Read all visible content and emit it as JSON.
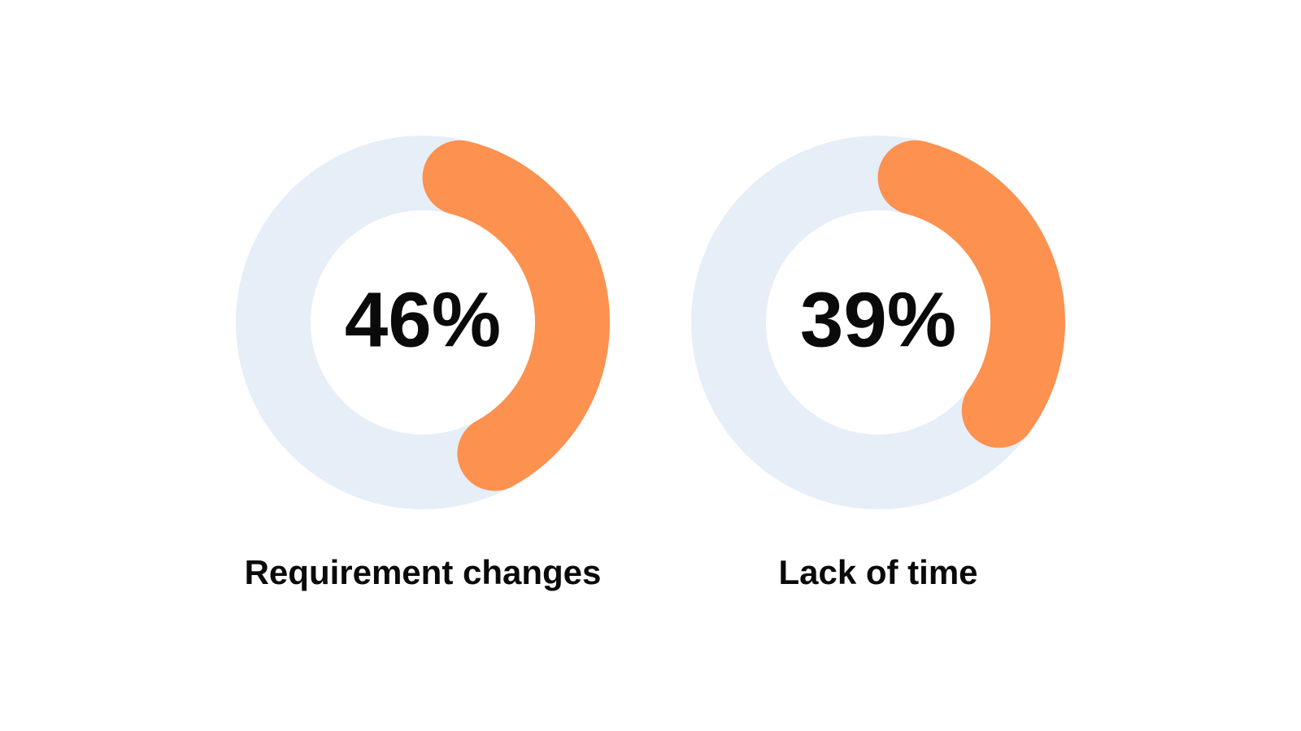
{
  "chart_data": [
    {
      "type": "donut",
      "categories": [
        "Requirement changes"
      ],
      "values": [
        46
      ],
      "value_labels": [
        "46%"
      ],
      "color": "#fd914f",
      "track_color": "#e6eef8"
    },
    {
      "type": "donut",
      "categories": [
        "Lack of time"
      ],
      "values": [
        39
      ],
      "value_labels": [
        "39%"
      ],
      "color": "#fd914f",
      "track_color": "#e6eef8"
    }
  ]
}
